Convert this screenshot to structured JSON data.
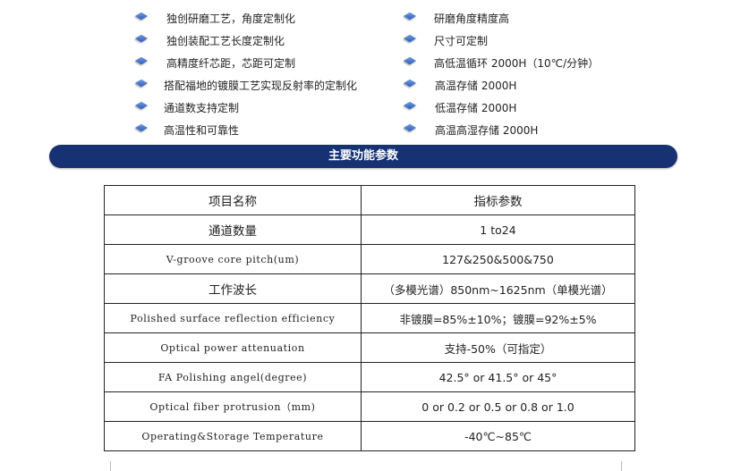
{
  "features_left": [
    "独创研磨工艺，角度定制化",
    "独创装配工艺长度定制化",
    "高精度纤芯距，芯距可定制",
    "搭配福地的镀膜工艺实现反射率的定制化",
    "通道数支持定制",
    "高温性和可靠性"
  ],
  "features_right": [
    "研磨角度精度高",
    "尺寸可定制",
    "高低温循环 2000H（10℃/分钟）",
    "高温存储 2000H",
    "低温存储 2000H",
    "高温高湿存储 2000H"
  ],
  "bullet_icon": "blue-diamond-icon",
  "banner": {
    "title": "主要功能参数",
    "color": "#163272"
  },
  "table": {
    "headers": [
      "项目名称",
      "指标参数"
    ],
    "rows": [
      [
        "通道数量",
        "1 to24"
      ],
      [
        "V-groove core pitch(um)",
        "127&250&500&750"
      ],
      [
        "工作波长",
        "（多模光谱）850nm~1625nm（单模光谱）"
      ],
      [
        "Polished surface reflection efficiency",
        "非镀膜=85%±10%；镀膜=92%±5%"
      ],
      [
        "Optical power attenuation",
        "支持-50%（可指定）"
      ],
      [
        "FA Polishing angel(degree)",
        "42.5° or  41.5° or  45°"
      ],
      [
        "Optical fiber protrusion（mm)",
        "0 or 0.2 or 0.5 or 0.8 or 1.0"
      ],
      [
        "Operating&Storage Temperature",
        "-40℃~85℃"
      ]
    ]
  }
}
